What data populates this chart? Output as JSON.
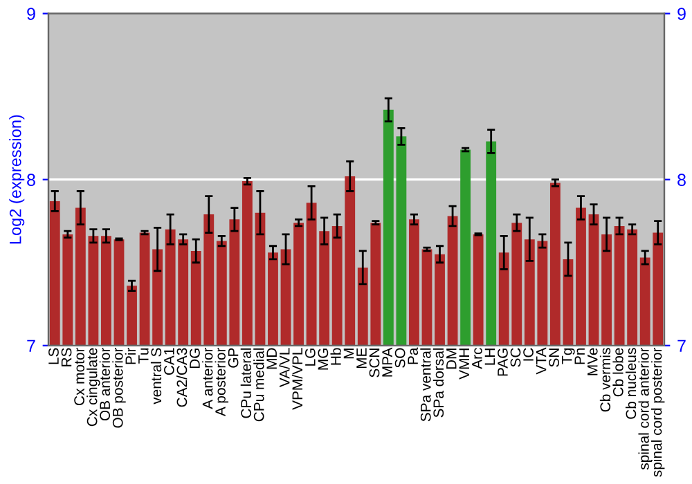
{
  "chart_data": {
    "type": "bar",
    "ylabel": "Log2 (expression)",
    "categories": [
      "LS",
      "RS",
      "Cx motor",
      "Cx cingulate",
      "OB anterior",
      "OB posterior",
      "Pir",
      "Tu",
      "ventral S",
      "CA1",
      "CA2/CA3",
      "DG",
      "A anterior",
      "A posterior",
      "GP",
      "CPu lateral",
      "CPu medial",
      "MD",
      "VA/VL",
      "VPM/VPL",
      "LG",
      "MG",
      "Hb",
      "M",
      "ME",
      "SCN",
      "MPA",
      "SO",
      "Pa",
      "SPa ventral",
      "SPa dorsal",
      "DM",
      "VMH",
      "Arc",
      "LH",
      "PAG",
      "SC",
      "IC",
      "VTA",
      "SN",
      "Tg",
      "Pn",
      "MVe",
      "Cb vermis",
      "Cb lobe",
      "Cb nucleus",
      "spinal cord anterior",
      "spinal cord posterior"
    ],
    "values": [
      7.87,
      7.67,
      7.83,
      7.66,
      7.66,
      7.64,
      7.36,
      7.68,
      7.58,
      7.7,
      7.64,
      7.57,
      7.79,
      7.63,
      7.76,
      7.99,
      7.8,
      7.56,
      7.58,
      7.74,
      7.86,
      7.69,
      7.72,
      8.02,
      7.47,
      7.74,
      8.42,
      8.26,
      7.76,
      7.58,
      7.55,
      7.78,
      8.18,
      7.67,
      8.23,
      7.56,
      7.74,
      7.64,
      7.63,
      7.98,
      7.52,
      7.83,
      7.79,
      7.67,
      7.72,
      7.7,
      7.53,
      7.68
    ],
    "errors": [
      0.06,
      0.02,
      0.1,
      0.04,
      0.04,
      0.005,
      0.03,
      0.01,
      0.13,
      0.09,
      0.03,
      0.07,
      0.11,
      0.03,
      0.07,
      0.02,
      0.13,
      0.04,
      0.09,
      0.02,
      0.1,
      0.08,
      0.07,
      0.09,
      0.1,
      0.01,
      0.07,
      0.05,
      0.03,
      0.01,
      0.05,
      0.06,
      0.01,
      0.005,
      0.07,
      0.1,
      0.05,
      0.13,
      0.04,
      0.02,
      0.1,
      0.07,
      0.06,
      0.1,
      0.05,
      0.03,
      0.04,
      0.07
    ],
    "colors": [
      "#b02a2a",
      "#b02a2a",
      "#b02a2a",
      "#b02a2a",
      "#b02a2a",
      "#b02a2a",
      "#b02a2a",
      "#b02a2a",
      "#b02a2a",
      "#b02a2a",
      "#b02a2a",
      "#b02a2a",
      "#b02a2a",
      "#b02a2a",
      "#b02a2a",
      "#b02a2a",
      "#b02a2a",
      "#b02a2a",
      "#b02a2a",
      "#b02a2a",
      "#b02a2a",
      "#b02a2a",
      "#b02a2a",
      "#b02a2a",
      "#b02a2a",
      "#b02a2a",
      "#2e9e2e",
      "#2e9e2e",
      "#b02a2a",
      "#b02a2a",
      "#b02a2a",
      "#b02a2a",
      "#2e9e2e",
      "#b02a2a",
      "#2e9e2e",
      "#b02a2a",
      "#b02a2a",
      "#b02a2a",
      "#b02a2a",
      "#b02a2a",
      "#b02a2a",
      "#b02a2a",
      "#b02a2a",
      "#b02a2a",
      "#b02a2a",
      "#b02a2a",
      "#b02a2a",
      "#b02a2a"
    ],
    "ylim": [
      7,
      9
    ],
    "yticks": [
      7,
      8,
      9
    ],
    "y2lim": [
      7,
      9
    ],
    "y2ticks": [
      7,
      8,
      9
    ],
    "grid": "y"
  }
}
